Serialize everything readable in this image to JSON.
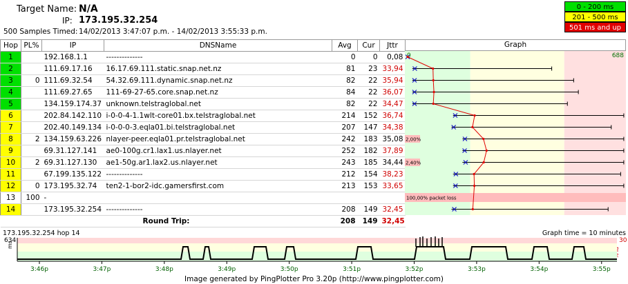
{
  "header": {
    "target_label": "Target Name:",
    "target_value": "N/A",
    "ip_label": "IP:",
    "ip_value": "173.195.32.254",
    "samples_label": "500 Samples Timed:",
    "samples_value": "14/02/2013 3:47:07 p.m. - 14/02/2013 3:55:33 p.m."
  },
  "legend": [
    {
      "label": "0 - 200 ms",
      "color": "#00e000",
      "text_color": "#000"
    },
    {
      "label": "201 - 500 ms",
      "color": "#ffff00",
      "text_color": "#000"
    },
    {
      "label": "501 ms and up",
      "color": "#e00000",
      "text_color": "#fff"
    }
  ],
  "columns": {
    "hop": "Hop",
    "pl": "PL%",
    "ip": "IP",
    "dns": "DNSName",
    "avg": "Avg",
    "cur": "Cur",
    "jttr": "Jttr",
    "graph": "Graph"
  },
  "graph_scale": {
    "min_label": "0",
    "max_label": "688",
    "max": 688
  },
  "hops": [
    {
      "hop": "1",
      "pl": "",
      "ip": "192.168.1.1",
      "dns": "--------------",
      "avg": "0",
      "cur": "0",
      "jttr": "0,08",
      "color": "#00e000",
      "min": 0,
      "max": 2,
      "cur_val": 0,
      "jttr_color": "#000"
    },
    {
      "hop": "2",
      "pl": "",
      "ip": "111.69.17.16",
      "dns": "16.17.69.111.static.snap.net.nz",
      "avg": "81",
      "cur": "23",
      "jttr": "33,94",
      "color": "#00e000",
      "min": 15,
      "max": 460,
      "cur_val": 23,
      "jttr_color": "#d00000"
    },
    {
      "hop": "3",
      "pl": "0",
      "ip": "111.69.32.54",
      "dns": "54.32.69.111.dynamic.snap.net.nz",
      "avg": "82",
      "cur": "22",
      "jttr": "35,94",
      "color": "#00e000",
      "min": 15,
      "max": 530,
      "cur_val": 22,
      "jttr_color": "#d00000"
    },
    {
      "hop": "4",
      "pl": "",
      "ip": "111.69.27.65",
      "dns": "111-69-27-65.core.snap.net.nz",
      "avg": "84",
      "cur": "22",
      "jttr": "36,07",
      "color": "#00e000",
      "min": 15,
      "max": 545,
      "cur_val": 22,
      "jttr_color": "#d00000"
    },
    {
      "hop": "5",
      "pl": "",
      "ip": "134.159.174.37",
      "dns": "unknown.telstraglobal.net",
      "avg": "82",
      "cur": "22",
      "jttr": "34,47",
      "color": "#00e000",
      "min": 15,
      "max": 510,
      "cur_val": 22,
      "jttr_color": "#d00000"
    },
    {
      "hop": "6",
      "pl": "",
      "ip": "202.84.142.110",
      "dns": "i-0-0-4-1.1wlt-core01.bx.telstraglobal.net",
      "avg": "214",
      "cur": "152",
      "jttr": "36,74",
      "color": "#ffff00",
      "min": 145,
      "max": 690,
      "cur_val": 152,
      "jttr_color": "#d00000"
    },
    {
      "hop": "7",
      "pl": "",
      "ip": "202.40.149.134",
      "dns": "i-0-0-0-3.eqla01.bi.telstraglobal.net",
      "avg": "207",
      "cur": "147",
      "jttr": "34,38",
      "color": "#ffff00",
      "min": 140,
      "max": 650,
      "cur_val": 147,
      "jttr_color": "#d00000"
    },
    {
      "hop": "8",
      "pl": "2",
      "ip": "134.159.63.226",
      "dns": "nlayer-peer.eqla01.pr.telstraglobal.net",
      "avg": "242",
      "cur": "183",
      "jttr": "35,08",
      "color": "#ffff00",
      "min": 175,
      "max": 690,
      "cur_val": 183,
      "jttr_color": "#000",
      "loss_label": "2,00%"
    },
    {
      "hop": "9",
      "pl": "",
      "ip": "69.31.127.141",
      "dns": "ae0-100g.cr1.lax1.us.nlayer.net",
      "avg": "252",
      "cur": "182",
      "jttr": "37,89",
      "color": "#ffff00",
      "min": 175,
      "max": 690,
      "cur_val": 182,
      "jttr_color": "#d00000"
    },
    {
      "hop": "10",
      "pl": "2",
      "ip": "69.31.127.130",
      "dns": "ae1-50g.ar1.lax2.us.nlayer.net",
      "avg": "243",
      "cur": "185",
      "jttr": "34,44",
      "color": "#ffff00",
      "min": 175,
      "max": 690,
      "cur_val": 185,
      "jttr_color": "#000",
      "loss_label": "2,40%"
    },
    {
      "hop": "11",
      "pl": "",
      "ip": "67.199.135.122",
      "dns": "--------------",
      "avg": "212",
      "cur": "154",
      "jttr": "38,23",
      "color": "#ffff00",
      "min": 145,
      "max": 680,
      "cur_val": 154,
      "jttr_color": "#d00000"
    },
    {
      "hop": "12",
      "pl": "0",
      "ip": "173.195.32.74",
      "dns": "ten2-1-bor2-idc.gamersfirst.com",
      "avg": "213",
      "cur": "153",
      "jttr": "33,65",
      "color": "#ffff00",
      "min": 145,
      "max": 690,
      "cur_val": 153,
      "jttr_color": "#d00000"
    },
    {
      "hop": "13",
      "pl": "100",
      "ip": "-",
      "dns": "",
      "avg": "",
      "cur": "",
      "jttr": "",
      "color": "#ffffff",
      "loss_label": "100,00% packet loss",
      "full_loss": true,
      "jttr_color": "#000"
    },
    {
      "hop": "14",
      "pl": "",
      "ip": "173.195.32.254",
      "dns": "--------------",
      "avg": "208",
      "cur": "149",
      "jttr": "32,45",
      "color": "#ffff00",
      "min": 140,
      "max": 640,
      "cur_val": 149,
      "jttr_color": "#d00000"
    }
  ],
  "round_trip": {
    "label": "Round Trip:",
    "avg": "208",
    "cur": "149",
    "jttr": "32,45"
  },
  "timeline": {
    "title": "173.195.32.254 hop 14",
    "graph_time": "Graph time = 10 minutes",
    "y_max": "634",
    "y_unit": "ms",
    "pl_max": "30",
    "pl_unit": "PL%",
    "ticks": [
      "3:46p",
      "3:47p",
      "3:48p",
      "3:49p",
      "3:50p",
      "3:51p",
      "3:52p",
      "3:53p",
      "3:54p",
      "3:55p"
    ],
    "footer": "Image generated by PingPlotter Pro 3.20p (http://www.pingplotter.com)"
  }
}
